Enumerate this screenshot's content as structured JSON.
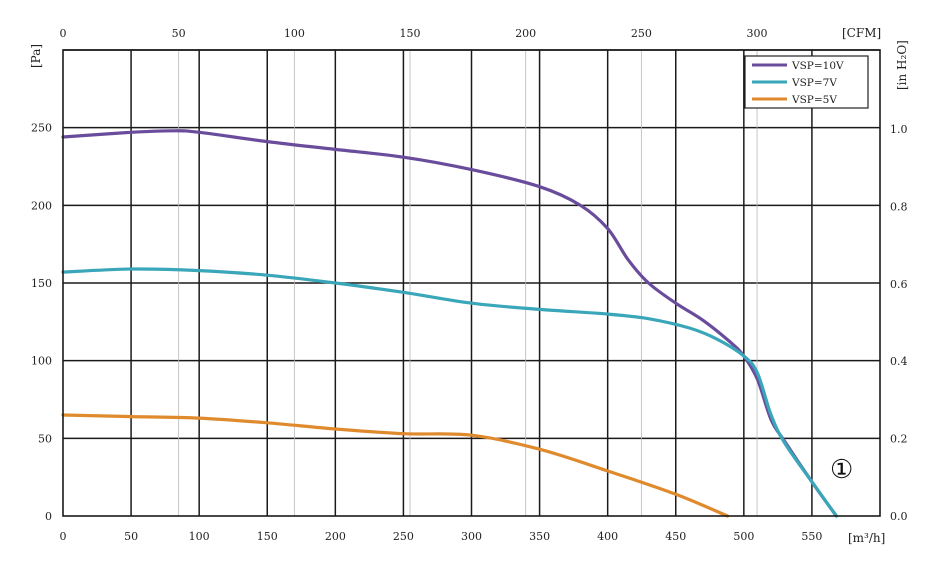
{
  "chart_data": {
    "type": "line",
    "x": {
      "unit": "[m³/h]",
      "range": [
        0,
        600
      ],
      "ticks": [
        0,
        50,
        100,
        150,
        200,
        250,
        300,
        350,
        400,
        450,
        500,
        550
      ]
    },
    "x_secondary": {
      "unit": "[CFM]",
      "ticks": [
        0,
        50,
        100,
        150,
        200,
        250,
        300
      ]
    },
    "y": {
      "unit": "[Pa]",
      "range": [
        0,
        300
      ],
      "ticks": [
        0,
        50,
        100,
        150,
        200,
        250
      ]
    },
    "y_secondary": {
      "unit": "[in H₂O]",
      "ticks": [
        "0.0",
        "0.2",
        "0.4",
        "0.6",
        "0.8",
        "1.0"
      ]
    },
    "grid": true,
    "legend_position": "top-right",
    "series": [
      {
        "name": "VSP=10V",
        "color": "#6a4c9c",
        "points": [
          [
            0,
            244
          ],
          [
            50,
            247
          ],
          [
            80,
            248
          ],
          [
            100,
            247
          ],
          [
            150,
            241
          ],
          [
            200,
            236
          ],
          [
            250,
            231
          ],
          [
            300,
            223
          ],
          [
            350,
            212
          ],
          [
            380,
            200
          ],
          [
            400,
            185
          ],
          [
            415,
            165
          ],
          [
            430,
            150
          ],
          [
            450,
            137
          ],
          [
            470,
            126
          ],
          [
            490,
            112
          ],
          [
            500,
            103
          ],
          [
            510,
            88
          ],
          [
            520,
            62
          ],
          [
            530,
            48
          ],
          [
            550,
            22
          ],
          [
            568,
            0
          ]
        ]
      },
      {
        "name": "VSP=7V",
        "color": "#3aa6b9",
        "points": [
          [
            0,
            157
          ],
          [
            50,
            159
          ],
          [
            100,
            158
          ],
          [
            150,
            155
          ],
          [
            200,
            150
          ],
          [
            250,
            144
          ],
          [
            300,
            137
          ],
          [
            350,
            133
          ],
          [
            400,
            130
          ],
          [
            430,
            127
          ],
          [
            460,
            121
          ],
          [
            480,
            114
          ],
          [
            500,
            103
          ],
          [
            510,
            92
          ],
          [
            520,
            65
          ],
          [
            530,
            47
          ],
          [
            550,
            22
          ],
          [
            568,
            0
          ]
        ]
      },
      {
        "name": "VSP=5V",
        "color": "#e08a2e",
        "points": [
          [
            0,
            65
          ],
          [
            50,
            64
          ],
          [
            100,
            63
          ],
          [
            150,
            60
          ],
          [
            200,
            56
          ],
          [
            250,
            53
          ],
          [
            300,
            52
          ],
          [
            350,
            43
          ],
          [
            400,
            29
          ],
          [
            450,
            14
          ],
          [
            488,
            0
          ]
        ]
      }
    ],
    "annotations": [
      "①"
    ]
  }
}
